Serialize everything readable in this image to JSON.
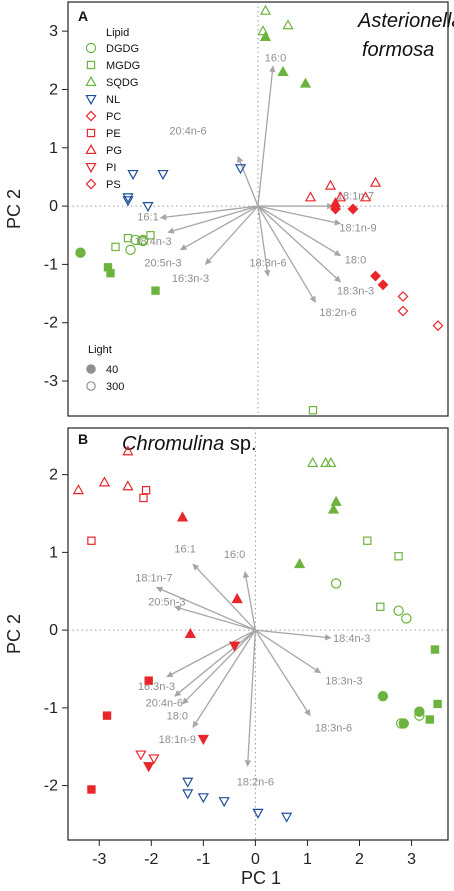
{
  "colors": {
    "green": "#6db33f",
    "red": "#e8262b",
    "blue": "#1f4e9c",
    "vector": "#a6a6a6",
    "zero": "#9a9a9a"
  },
  "legend": {
    "lipid_title": "Lipid",
    "lipids": [
      {
        "name": "DGDG",
        "color": "green",
        "shape": "circle"
      },
      {
        "name": "MGDG",
        "color": "green",
        "shape": "square"
      },
      {
        "name": "SQDG",
        "color": "green",
        "shape": "triangle"
      },
      {
        "name": "NL",
        "color": "blue",
        "shape": "triangle-down"
      },
      {
        "name": "PC",
        "color": "red",
        "shape": "diamond"
      },
      {
        "name": "PE",
        "color": "red",
        "shape": "square"
      },
      {
        "name": "PG",
        "color": "red",
        "shape": "triangle"
      },
      {
        "name": "PI",
        "color": "red",
        "shape": "triangle-down"
      },
      {
        "name": "PS",
        "color": "red",
        "shape": "diamond"
      }
    ],
    "light_title": "Light",
    "light_levels": [
      {
        "label": "40",
        "fill": "filled"
      },
      {
        "label": "300",
        "fill": "open"
      }
    ]
  },
  "chart_data": [
    {
      "type": "scatter",
      "panel": "A",
      "title": "Asterionella formosa",
      "xlabel": "",
      "ylabel": "PC 2",
      "xlim": [
        -3.8,
        3.8
      ],
      "ylim": [
        -3.6,
        3.5
      ],
      "xticks": [],
      "yticks": [
        3,
        2,
        1,
        0,
        -1,
        -2,
        -3
      ],
      "points": [
        {
          "x": 0.15,
          "y": 3.35,
          "lipid": "SQDG",
          "light": "300"
        },
        {
          "x": 0.6,
          "y": 3.1,
          "lipid": "SQDG",
          "light": "300"
        },
        {
          "x": 0.1,
          "y": 3.0,
          "lipid": "SQDG",
          "light": "300"
        },
        {
          "x": 0.15,
          "y": 2.9,
          "lipid": "SQDG",
          "light": "40"
        },
        {
          "x": 0.5,
          "y": 2.3,
          "lipid": "SQDG",
          "light": "40"
        },
        {
          "x": 0.95,
          "y": 2.1,
          "lipid": "SQDG",
          "light": "40"
        },
        {
          "x": -2.5,
          "y": 0.55,
          "lipid": "NL",
          "light": "300"
        },
        {
          "x": -1.9,
          "y": 0.55,
          "lipid": "NL",
          "light": "300"
        },
        {
          "x": -0.35,
          "y": 0.65,
          "lipid": "NL",
          "light": "300"
        },
        {
          "x": -2.6,
          "y": 0.15,
          "lipid": "NL",
          "light": "300"
        },
        {
          "x": -2.6,
          "y": 0.1,
          "lipid": "NL",
          "light": "300"
        },
        {
          "x": -2.2,
          "y": 0.0,
          "lipid": "NL",
          "light": "300"
        },
        {
          "x": -2.15,
          "y": -0.5,
          "lipid": "MGDG",
          "light": "300"
        },
        {
          "x": -2.6,
          "y": -0.55,
          "lipid": "MGDG",
          "light": "300"
        },
        {
          "x": -2.45,
          "y": -0.58,
          "lipid": "DGDG",
          "light": "300"
        },
        {
          "x": -2.3,
          "y": -0.6,
          "lipid": "DGDG",
          "light": "300"
        },
        {
          "x": -2.3,
          "y": -0.58,
          "lipid": "DGDG",
          "light": "300"
        },
        {
          "x": -2.85,
          "y": -0.7,
          "lipid": "MGDG",
          "light": "300"
        },
        {
          "x": -2.55,
          "y": -0.75,
          "lipid": "DGDG",
          "light": "300"
        },
        {
          "x": -3.55,
          "y": -0.8,
          "lipid": "DGDG",
          "light": "40"
        },
        {
          "x": -3.0,
          "y": -1.05,
          "lipid": "MGDG",
          "light": "40"
        },
        {
          "x": -2.95,
          "y": -1.15,
          "lipid": "MGDG",
          "light": "40"
        },
        {
          "x": -2.05,
          "y": -1.45,
          "lipid": "MGDG",
          "light": "40"
        },
        {
          "x": 1.45,
          "y": 0.35,
          "lipid": "PG",
          "light": "300"
        },
        {
          "x": 2.35,
          "y": 0.4,
          "lipid": "PG",
          "light": "300"
        },
        {
          "x": 1.05,
          "y": 0.15,
          "lipid": "PG",
          "light": "300"
        },
        {
          "x": 1.65,
          "y": 0.15,
          "lipid": "PG",
          "light": "300"
        },
        {
          "x": 2.15,
          "y": 0.15,
          "lipid": "PG",
          "light": "300"
        },
        {
          "x": 1.55,
          "y": 0.05,
          "lipid": "PG",
          "light": "40"
        },
        {
          "x": 1.55,
          "y": -0.05,
          "lipid": "PC",
          "light": "40"
        },
        {
          "x": 1.9,
          "y": -0.05,
          "lipid": "PC",
          "light": "40"
        },
        {
          "x": 2.35,
          "y": -1.2,
          "lipid": "PC",
          "light": "40"
        },
        {
          "x": 2.5,
          "y": -1.35,
          "lipid": "PC",
          "light": "40"
        },
        {
          "x": 2.9,
          "y": -1.55,
          "lipid": "PC",
          "light": "300"
        },
        {
          "x": 2.9,
          "y": -1.8,
          "lipid": "PC",
          "light": "300"
        },
        {
          "x": 3.6,
          "y": -2.05,
          "lipid": "PC",
          "light": "300"
        },
        {
          "x": 1.1,
          "y": -3.5,
          "lipid": "MGDG",
          "light": "300"
        }
      ],
      "vectors": [
        {
          "label": "16:0",
          "x": 0.3,
          "y": 2.4,
          "lx": 0.35,
          "ly": 2.55
        },
        {
          "label": "20:4n-6",
          "x": -0.4,
          "y": 0.85,
          "lx": -1.4,
          "ly": 1.3
        },
        {
          "label": "18:1n-7",
          "x": 1.5,
          "y": 0.0,
          "lx": 1.95,
          "ly": 0.18
        },
        {
          "label": "18:1n-9",
          "x": 1.65,
          "y": -0.3,
          "lx": 2.0,
          "ly": -0.37
        },
        {
          "label": "16:1",
          "x": -1.95,
          "y": -0.2,
          "lx": -2.2,
          "ly": -0.18
        },
        {
          "label": "18:4n-3",
          "x": -1.8,
          "y": -0.45,
          "lx": -2.1,
          "ly": -0.6
        },
        {
          "label": "20:5n-3",
          "x": -1.55,
          "y": -0.75,
          "lx": -1.9,
          "ly": -0.97
        },
        {
          "label": "16:3n-3",
          "x": -1.05,
          "y": -1.0,
          "lx": -1.35,
          "ly": -1.23
        },
        {
          "label": "18:3n-6",
          "x": 0.2,
          "y": -1.2,
          "lx": 0.2,
          "ly": -0.97
        },
        {
          "label": "18:0",
          "x": 1.65,
          "y": -0.85,
          "lx": 1.95,
          "ly": -0.92
        },
        {
          "label": "18:3n-3",
          "x": 1.65,
          "y": -1.3,
          "lx": 1.95,
          "ly": -1.45
        },
        {
          "label": "18:2n-6",
          "x": 1.15,
          "y": -1.65,
          "lx": 1.6,
          "ly": -1.82
        }
      ]
    },
    {
      "type": "scatter",
      "panel": "B",
      "title": "Chromulina sp.",
      "xlabel": "PC 1",
      "ylabel": "PC 2",
      "xlim": [
        -3.6,
        3.7
      ],
      "ylim": [
        -2.7,
        2.6
      ],
      "xticks": [
        -3,
        -2,
        -1,
        0,
        1,
        2,
        3
      ],
      "yticks": [
        2,
        1,
        0,
        -1,
        -2
      ],
      "points": [
        {
          "x": -2.45,
          "y": 2.3,
          "lipid": "PG",
          "light": "300"
        },
        {
          "x": -3.4,
          "y": 1.8,
          "lipid": "PG",
          "light": "300"
        },
        {
          "x": -2.9,
          "y": 1.9,
          "lipid": "PG",
          "light": "300"
        },
        {
          "x": -2.45,
          "y": 1.85,
          "lipid": "PG",
          "light": "300"
        },
        {
          "x": -2.1,
          "y": 1.8,
          "lipid": "PE",
          "light": "300"
        },
        {
          "x": -2.15,
          "y": 1.7,
          "lipid": "PE",
          "light": "300"
        },
        {
          "x": -1.4,
          "y": 1.45,
          "lipid": "PG",
          "light": "40"
        },
        {
          "x": -3.15,
          "y": 1.15,
          "lipid": "PE",
          "light": "300"
        },
        {
          "x": -0.35,
          "y": 0.4,
          "lipid": "PG",
          "light": "40"
        },
        {
          "x": -1.25,
          "y": -0.05,
          "lipid": "PG",
          "light": "40"
        },
        {
          "x": -0.4,
          "y": -0.2,
          "lipid": "PI",
          "light": "40"
        },
        {
          "x": -2.05,
          "y": -0.65,
          "lipid": "PE",
          "light": "40"
        },
        {
          "x": -2.85,
          "y": -1.1,
          "lipid": "PE",
          "light": "40"
        },
        {
          "x": -1.0,
          "y": -1.4,
          "lipid": "PI",
          "light": "40"
        },
        {
          "x": -2.2,
          "y": -1.6,
          "lipid": "PI",
          "light": "300"
        },
        {
          "x": -1.95,
          "y": -1.65,
          "lipid": "PI",
          "light": "300"
        },
        {
          "x": -2.05,
          "y": -1.75,
          "lipid": "PI",
          "light": "40"
        },
        {
          "x": -3.15,
          "y": -2.05,
          "lipid": "PE",
          "light": "40"
        },
        {
          "x": -1.3,
          "y": -1.95,
          "lipid": "NL",
          "light": "300"
        },
        {
          "x": -1.3,
          "y": -2.1,
          "lipid": "NL",
          "light": "300"
        },
        {
          "x": -0.6,
          "y": -2.2,
          "lipid": "NL",
          "light": "300"
        },
        {
          "x": -1.0,
          "y": -2.15,
          "lipid": "NL",
          "light": "300"
        },
        {
          "x": 0.05,
          "y": -2.35,
          "lipid": "NL",
          "light": "300"
        },
        {
          "x": 0.6,
          "y": -2.4,
          "lipid": "NL",
          "light": "300"
        },
        {
          "x": 1.1,
          "y": 2.15,
          "lipid": "SQDG",
          "light": "300"
        },
        {
          "x": 1.35,
          "y": 2.15,
          "lipid": "SQDG",
          "light": "300"
        },
        {
          "x": 1.45,
          "y": 2.15,
          "lipid": "SQDG",
          "light": "300"
        },
        {
          "x": 1.55,
          "y": 1.65,
          "lipid": "SQDG",
          "light": "40"
        },
        {
          "x": 1.5,
          "y": 1.55,
          "lipid": "SQDG",
          "light": "40"
        },
        {
          "x": 2.15,
          "y": 1.15,
          "lipid": "MGDG",
          "light": "300"
        },
        {
          "x": 2.75,
          "y": 0.95,
          "lipid": "MGDG",
          "light": "300"
        },
        {
          "x": 0.85,
          "y": 0.85,
          "lipid": "SQDG",
          "light": "40"
        },
        {
          "x": 1.55,
          "y": 0.6,
          "lipid": "DGDG",
          "light": "300"
        },
        {
          "x": 2.4,
          "y": 0.3,
          "lipid": "MGDG",
          "light": "300"
        },
        {
          "x": 2.75,
          "y": 0.25,
          "lipid": "DGDG",
          "light": "300"
        },
        {
          "x": 2.9,
          "y": 0.15,
          "lipid": "DGDG",
          "light": "300"
        },
        {
          "x": 3.45,
          "y": -0.25,
          "lipid": "MGDG",
          "light": "40"
        },
        {
          "x": 2.45,
          "y": -0.85,
          "lipid": "DGDG",
          "light": "40"
        },
        {
          "x": 3.5,
          "y": -0.95,
          "lipid": "MGDG",
          "light": "40"
        },
        {
          "x": 3.15,
          "y": -1.05,
          "lipid": "DGDG",
          "light": "40"
        },
        {
          "x": 3.15,
          "y": -1.1,
          "lipid": "DGDG",
          "light": "300"
        },
        {
          "x": 3.35,
          "y": -1.15,
          "lipid": "MGDG",
          "light": "40"
        },
        {
          "x": 2.85,
          "y": -1.2,
          "lipid": "DGDG",
          "light": "40"
        },
        {
          "x": 2.8,
          "y": -1.2,
          "lipid": "DGDG",
          "light": "300"
        }
      ],
      "vectors": [
        {
          "label": "16:1",
          "x": -1.2,
          "y": 0.85,
          "lx": -1.35,
          "ly": 1.05
        },
        {
          "label": "16:0",
          "x": -0.2,
          "y": 0.75,
          "lx": -0.4,
          "ly": 0.98
        },
        {
          "label": "18:1n-7",
          "x": -1.9,
          "y": 0.55,
          "lx": -1.95,
          "ly": 0.68
        },
        {
          "label": "20:5n-3",
          "x": -1.55,
          "y": 0.3,
          "lx": -1.7,
          "ly": 0.37
        },
        {
          "label": "18:4n-3",
          "x": 1.45,
          "y": -0.1,
          "lx": 1.85,
          "ly": -0.1
        },
        {
          "label": "18:3n-3",
          "x": 1.25,
          "y": -0.55,
          "lx": 1.7,
          "ly": -0.65
        },
        {
          "label": "18:3n-6",
          "x": 1.05,
          "y": -1.1,
          "lx": 1.5,
          "ly": -1.25
        },
        {
          "label": "16:3n-3",
          "x": -1.7,
          "y": -0.6,
          "lx": -1.9,
          "ly": -0.72
        },
        {
          "label": "20:4n-6",
          "x": -1.55,
          "y": -0.85,
          "lx": -1.75,
          "ly": -0.93
        },
        {
          "label": "18:0",
          "x": -1.4,
          "y": -0.95,
          "lx": -1.5,
          "ly": -1.1
        },
        {
          "label": "18:1n-9",
          "x": -1.2,
          "y": -1.25,
          "lx": -1.5,
          "ly": -1.4
        },
        {
          "label": "18:2n-6",
          "x": -0.15,
          "y": -1.75,
          "lx": 0.0,
          "ly": -1.95
        }
      ]
    }
  ]
}
